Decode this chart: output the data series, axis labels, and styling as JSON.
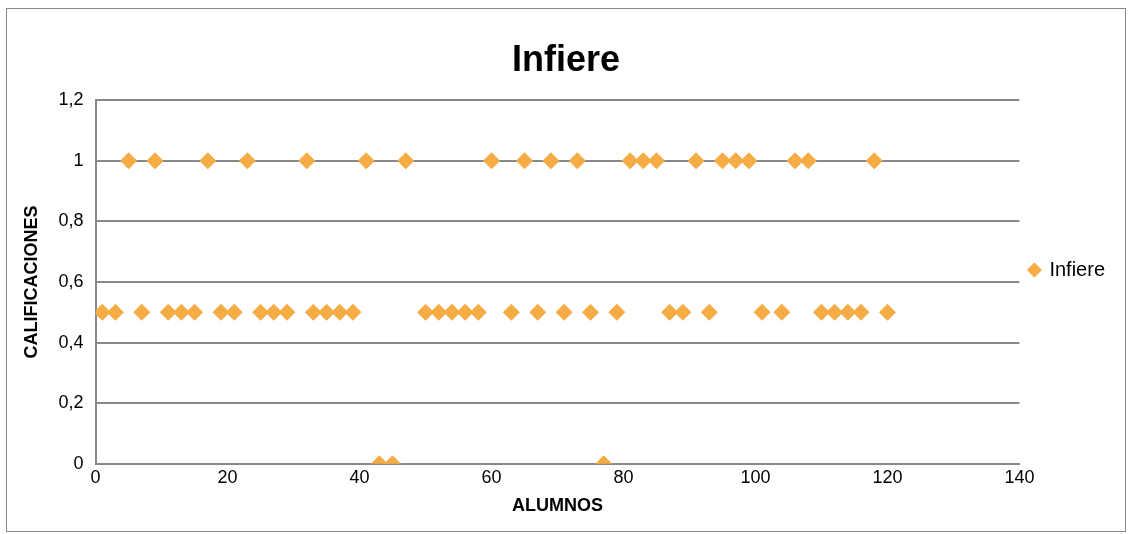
{
  "chart_data": {
    "type": "scatter",
    "title": "Infiere",
    "xlabel": "ALUMNOS",
    "ylabel": "CALIFICACIONES",
    "xlim": [
      0,
      140
    ],
    "xticks": [
      0,
      20,
      40,
      60,
      80,
      100,
      120,
      140
    ],
    "ylim": [
      0,
      1.2
    ],
    "yticks": [
      {
        "value": 0,
        "label": "0"
      },
      {
        "value": 0.2,
        "label": "0,2"
      },
      {
        "value": 0.4,
        "label": "0,4"
      },
      {
        "value": 0.6,
        "label": "0,6"
      },
      {
        "value": 0.8,
        "label": "0,8"
      },
      {
        "value": 1,
        "label": "1"
      },
      {
        "value": 1.2,
        "label": "1,2"
      }
    ],
    "grid": "y",
    "legend": "right",
    "marker": "diamond",
    "series": [
      {
        "name": "Infiere",
        "color": "#f5ac45",
        "x": [
          5,
          9,
          17,
          23,
          32,
          41,
          47,
          60,
          65,
          69,
          73,
          81,
          83,
          85,
          91,
          95,
          97,
          99,
          106,
          108,
          118,
          1,
          3,
          7,
          11,
          13,
          15,
          19,
          21,
          25,
          27,
          29,
          33,
          35,
          37,
          39,
          50,
          52,
          54,
          56,
          58,
          63,
          67,
          71,
          75,
          79,
          87,
          89,
          93,
          101,
          104,
          110,
          112,
          114,
          116,
          120,
          43,
          45,
          77
        ],
        "values": [
          1,
          1,
          1,
          1,
          1,
          1,
          1,
          1,
          1,
          1,
          1,
          1,
          1,
          1,
          1,
          1,
          1,
          1,
          1,
          1,
          1,
          0.5,
          0.5,
          0.5,
          0.5,
          0.5,
          0.5,
          0.5,
          0.5,
          0.5,
          0.5,
          0.5,
          0.5,
          0.5,
          0.5,
          0.5,
          0.5,
          0.5,
          0.5,
          0.5,
          0.5,
          0.5,
          0.5,
          0.5,
          0.5,
          0.5,
          0.5,
          0.5,
          0.5,
          0.5,
          0.5,
          0.5,
          0.5,
          0.5,
          0.5,
          0.5,
          0,
          0,
          0
        ]
      }
    ]
  }
}
